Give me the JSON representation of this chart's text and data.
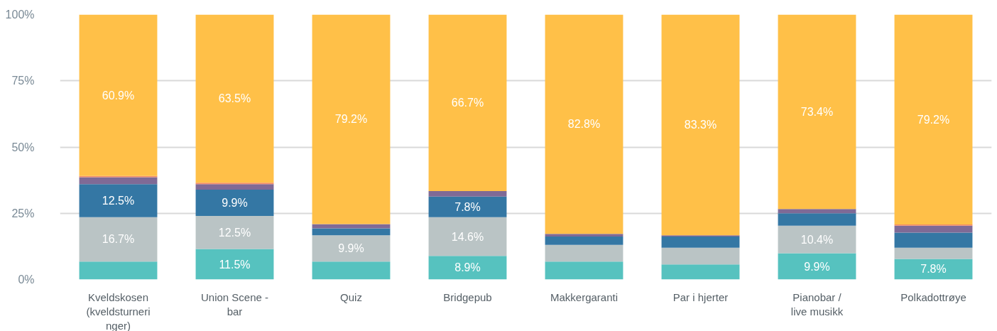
{
  "chart_data": {
    "type": "bar",
    "stacked": true,
    "grid": "y",
    "categories": [
      "Kveldskosen (kveldsturneringer)",
      "Union Scene - bar",
      "Quiz",
      "Bridgepub",
      "Makkergaranti",
      "Par i hjerter",
      "Pianobar / live musikk",
      "Polkadottrøye"
    ],
    "ylim": [
      0,
      100
    ],
    "yticks": [
      {
        "value": 0,
        "label": "0%"
      },
      {
        "value": 25,
        "label": "25%"
      },
      {
        "value": 50,
        "label": "50%"
      },
      {
        "value": 75,
        "label": "75%"
      },
      {
        "value": 100,
        "label": "100%"
      }
    ],
    "series": [
      {
        "color": "#56c2bf",
        "values": [
          6.8,
          11.5,
          6.8,
          8.9,
          6.8,
          5.7,
          9.9,
          7.8
        ],
        "value_labels": [
          null,
          "11.5%",
          null,
          "8.9%",
          null,
          null,
          "9.9%",
          "7.8%"
        ]
      },
      {
        "color": "#bac4c5",
        "values": [
          16.7,
          12.5,
          9.9,
          14.6,
          6.3,
          6.3,
          10.4,
          4.2
        ],
        "value_labels": [
          "16.7%",
          "12.5%",
          "9.9%",
          "14.6%",
          null,
          null,
          "10.4%",
          null
        ]
      },
      {
        "color": "#3477a4",
        "values": [
          12.5,
          9.9,
          2.6,
          7.8,
          3.1,
          4.2,
          4.7,
          5.7
        ],
        "value_labels": [
          "12.5%",
          "9.9%",
          null,
          "7.8%",
          null,
          null,
          null,
          null
        ]
      },
      {
        "color": "#7f6a96",
        "values": [
          2.6,
          2.1,
          1.6,
          2.1,
          1.0,
          0.5,
          1.6,
          2.6
        ]
      },
      {
        "color": "#f08b66",
        "values": [
          0.5,
          0.5,
          null,
          null,
          null,
          null,
          null,
          0.5
        ]
      },
      {
        "color": "#ffc048",
        "values": [
          60.9,
          63.5,
          79.2,
          66.7,
          82.8,
          83.3,
          73.4,
          79.2
        ],
        "value_labels": [
          "60.9%",
          "63.5%",
          "79.2%",
          "66.7%",
          "82.8%",
          "83.3%",
          "73.4%",
          "79.2%"
        ]
      }
    ]
  }
}
